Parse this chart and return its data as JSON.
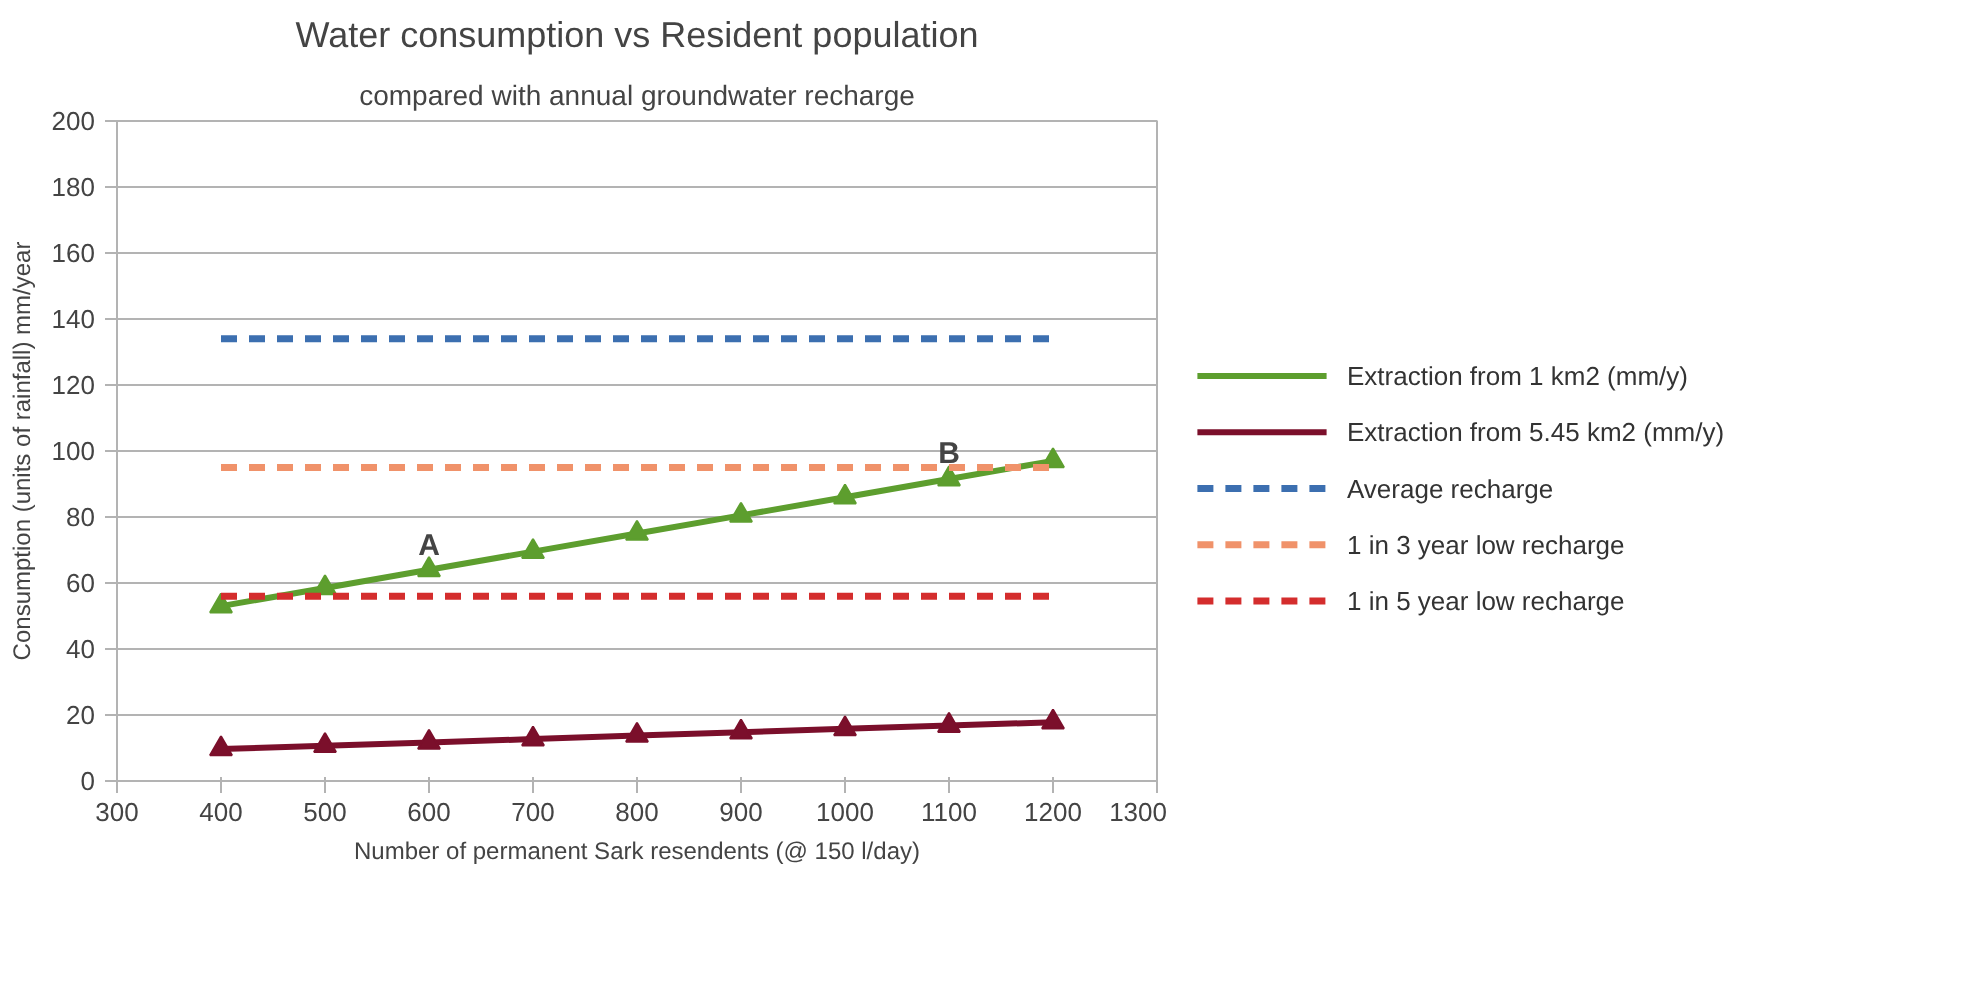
{
  "chart_data": {
    "type": "line",
    "title": "Water consumption vs Resident population",
    "subtitle": "compared with annual groundwater recharge",
    "xlabel": "Number of permanent Sark resendents (@ 150 l/day)",
    "ylabel": "Consumption (units of rainfall) mm/year",
    "x": [
      400,
      500,
      600,
      700,
      800,
      900,
      1000,
      1100,
      1200
    ],
    "series": [
      {
        "name": "Extraction from 1 km2 (mm/y)",
        "color": "#5d9e2e",
        "marker": "triangle",
        "line_style": "solid",
        "values": [
          53,
          58.5,
          64,
          69.5,
          75,
          80.5,
          86,
          91.5,
          97
        ]
      },
      {
        "name": "Extraction from 5.45 km2 (mm/y)",
        "color": "#7b0f2b",
        "marker": "triangle",
        "line_style": "solid",
        "values": [
          9.7,
          10.7,
          11.7,
          12.7,
          13.8,
          14.8,
          15.8,
          16.8,
          17.8
        ]
      },
      {
        "name": "Average recharge",
        "color": "#3c6fb0",
        "marker": "none",
        "line_style": "dashed",
        "values": [
          134,
          134,
          134,
          134,
          134,
          134,
          134,
          134,
          134
        ]
      },
      {
        "name": "1 in 3 year low recharge",
        "color": "#f0926a",
        "marker": "none",
        "line_style": "dashed",
        "values": [
          95,
          95,
          95,
          95,
          95,
          95,
          95,
          95,
          95
        ]
      },
      {
        "name": "1 in 5 year low recharge",
        "color": "#d42d2d",
        "marker": "none",
        "line_style": "dashed",
        "values": [
          56,
          56,
          56,
          56,
          56,
          56,
          56,
          56,
          56
        ]
      }
    ],
    "xlim": [
      300,
      1300
    ],
    "xticks": [
      300,
      400,
      500,
      600,
      700,
      800,
      900,
      1000,
      1100,
      1200,
      1300
    ],
    "ylim": [
      0,
      200
    ],
    "yticks": [
      0,
      20,
      40,
      60,
      80,
      100,
      120,
      140,
      160,
      180,
      200
    ],
    "grid": "y",
    "legend": "right",
    "annotations": [
      {
        "text": "A",
        "x": 600,
        "y": 66
      },
      {
        "text": "B",
        "x": 1100,
        "y": 94
      }
    ]
  }
}
